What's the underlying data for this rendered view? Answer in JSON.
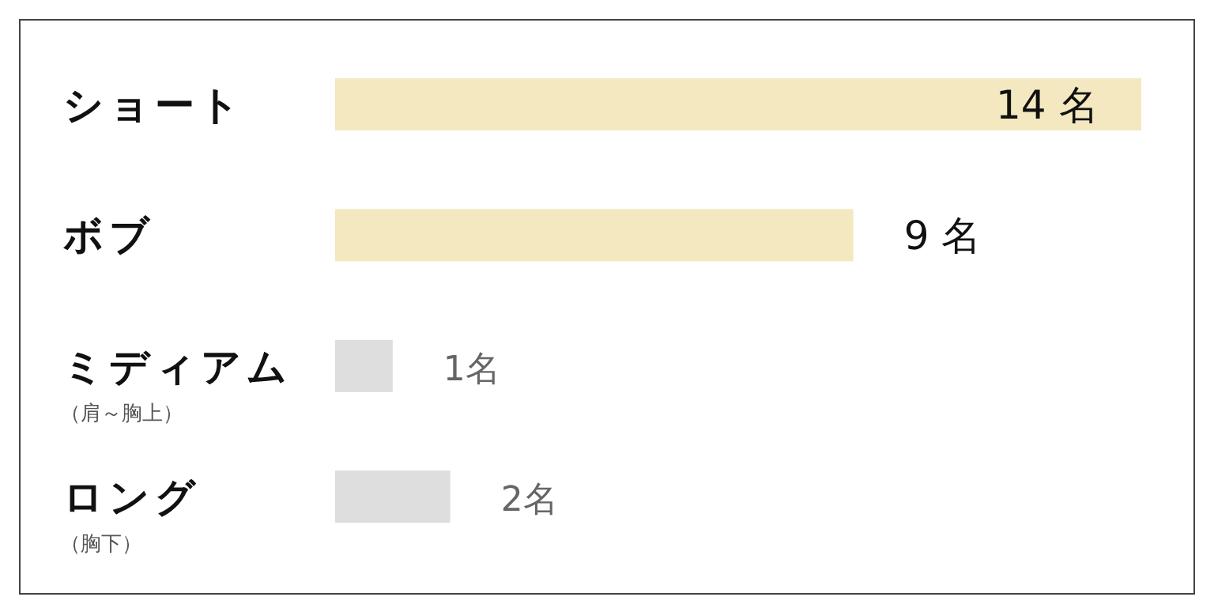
{
  "chart_data": {
    "type": "bar",
    "orientation": "horizontal",
    "categories": [
      "ショート",
      "ボブ",
      "ミディアム（肩～胸上）",
      "ロング（胸下）"
    ],
    "values": [
      14,
      9,
      1,
      2
    ],
    "colors": [
      "#f3e8bf",
      "#f3e8bf",
      "#dedede",
      "#dedede"
    ],
    "value_labels": [
      "14 名",
      "9 名",
      "1名",
      "2名"
    ]
  }
}
